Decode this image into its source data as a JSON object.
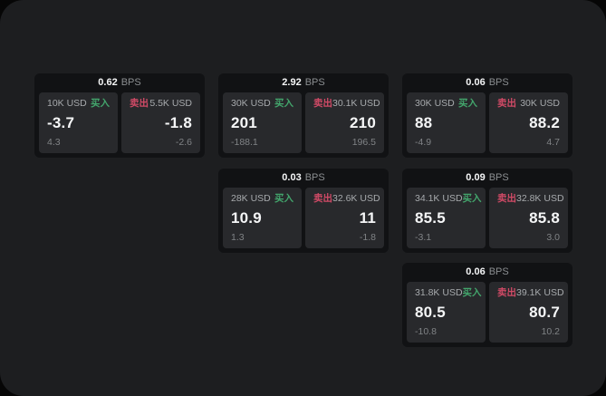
{
  "colors": {
    "backdrop": "#060606",
    "screen_bg": "#1d1e20",
    "card_bg": "#111214",
    "tile_bg": "#28292c",
    "value_text": "#f5f6f7",
    "label_text": "#a7aaad",
    "sub_text": "#808386",
    "bps_unit_text": "#8b8e91",
    "buy_color": "#43a56c",
    "sell_color": "#d04a66"
  },
  "unit_label": "BPS",
  "buy_label": "买入",
  "sell_label": "卖出",
  "cards": [
    {
      "bps": "0.62",
      "col": 1,
      "row": 1,
      "buy": {
        "size": "10K USD",
        "value": "-3.7",
        "sub": "4.3"
      },
      "sell": {
        "size": "5.5K USD",
        "value": "-1.8",
        "sub": "-2.6"
      }
    },
    {
      "bps": "2.92",
      "col": 2,
      "row": 1,
      "buy": {
        "size": "30K USD",
        "value": "201",
        "sub": "-188.1"
      },
      "sell": {
        "size": "30.1K USD",
        "value": "210",
        "sub": "196.5"
      }
    },
    {
      "bps": "0.06",
      "col": 3,
      "row": 1,
      "buy": {
        "size": "30K USD",
        "value": "88",
        "sub": "-4.9"
      },
      "sell": {
        "size": "30K USD",
        "value": "88.2",
        "sub": "4.7"
      }
    },
    {
      "bps": "0.03",
      "col": 2,
      "row": 2,
      "buy": {
        "size": "28K USD",
        "value": "10.9",
        "sub": "1.3"
      },
      "sell": {
        "size": "32.6K USD",
        "value": "11",
        "sub": "-1.8"
      }
    },
    {
      "bps": "0.09",
      "col": 3,
      "row": 2,
      "buy": {
        "size": "34.1K USD",
        "value": "85.5",
        "sub": "-3.1"
      },
      "sell": {
        "size": "32.8K USD",
        "value": "85.8",
        "sub": "3.0"
      }
    },
    {
      "bps": "0.06",
      "col": 3,
      "row": 3,
      "buy": {
        "size": "31.8K USD",
        "value": "80.5",
        "sub": "-10.8"
      },
      "sell": {
        "size": "39.1K USD",
        "value": "80.7",
        "sub": "10.2"
      }
    }
  ]
}
